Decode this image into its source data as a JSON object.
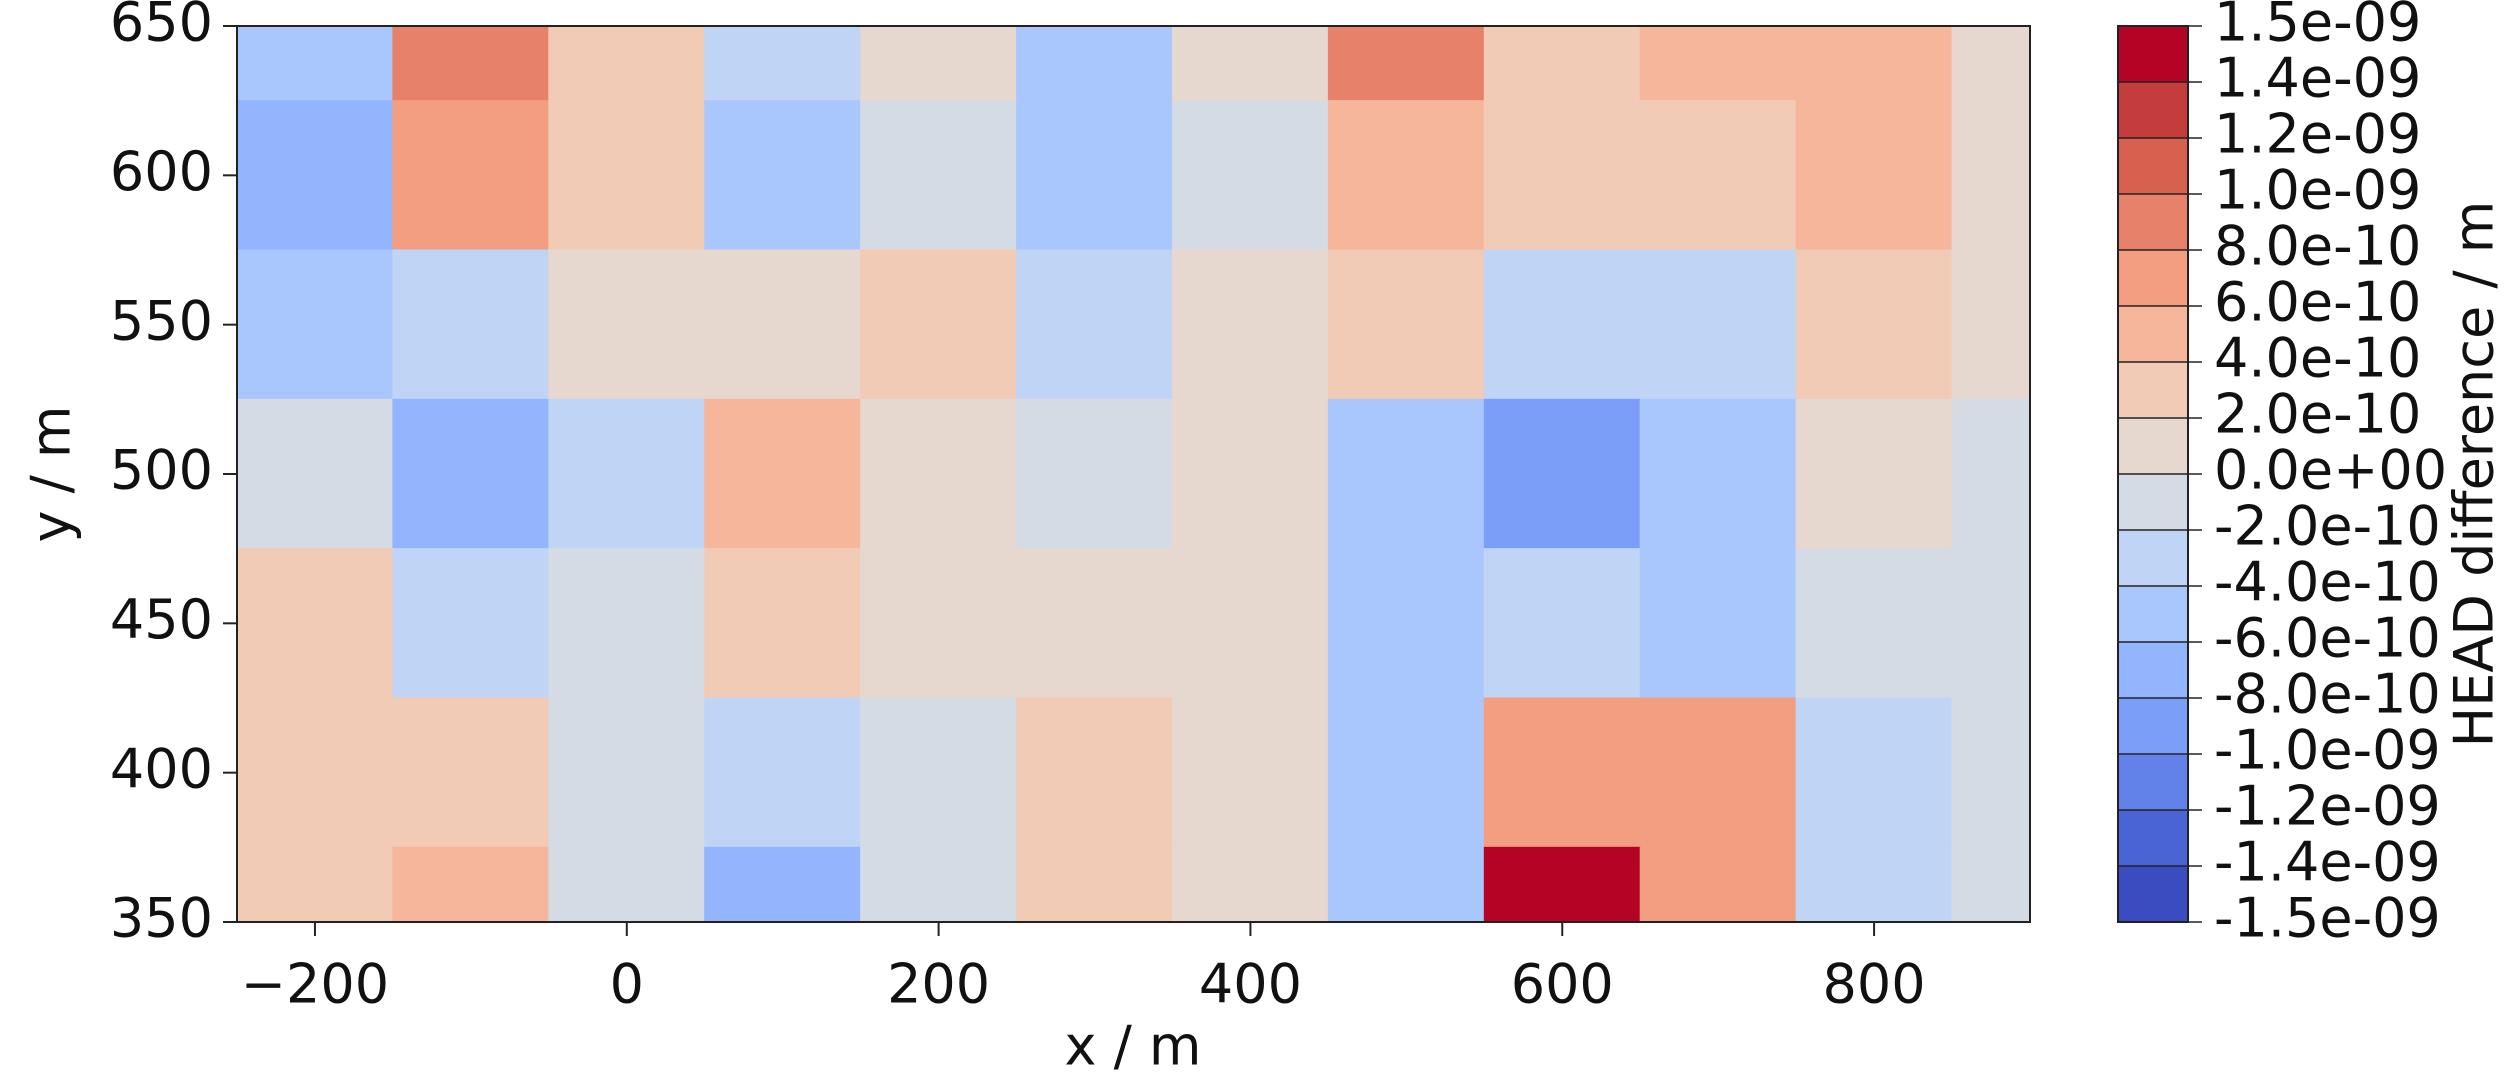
{
  "chart_data": {
    "type": "contour",
    "x_label": "x / m",
    "y_label": "y / m",
    "colorbar_label": "HEAD difference / m",
    "xlim": [
      -250,
      900
    ],
    "ylim": [
      350,
      650
    ],
    "xticks": [
      {
        "value": -200,
        "label": "−200"
      },
      0,
      200,
      400,
      600,
      800
    ],
    "yticks": [
      350,
      400,
      450,
      500,
      550,
      600,
      650
    ],
    "x": [
      -200,
      -100,
      0,
      100,
      200,
      300,
      400,
      500,
      600,
      700,
      800,
      900
    ],
    "y": [
      650,
      600,
      550,
      500,
      450,
      400,
      350
    ],
    "z": [
      [
        -5e-10,
        9e-10,
        3e-10,
        -3e-10,
        1e-10,
        -5e-10,
        1e-10,
        9e-10,
        3e-10,
        6e-10,
        5e-10,
        1e-10
      ],
      [
        -7e-10,
        7e-10,
        3e-10,
        -4e-10,
        0,
        -4e-10,
        0,
        6e-10,
        3e-10,
        4e-10,
        5e-10,
        1e-10
      ],
      [
        -4e-10,
        -2e-10,
        1e-10,
        1e-10,
        3e-10,
        -2e-10,
        1e-10,
        3e-10,
        -3e-10,
        -3e-10,
        3e-10,
        1e-10
      ],
      [
        -1e-10,
        -7e-10,
        -3e-10,
        5e-10,
        1e-10,
        -1e-10,
        1e-10,
        -5e-10,
        -9e-10,
        -4e-10,
        2e-10,
        0
      ],
      [
        3e-10,
        -3e-10,
        -1e-10,
        3e-10,
        1e-10,
        1e-10,
        1e-10,
        -4e-10,
        -2e-10,
        -4e-10,
        -1e-10,
        0
      ],
      [
        3e-10,
        4e-10,
        0,
        -3e-10,
        -1e-10,
        4e-10,
        1e-10,
        -4e-10,
        8e-10,
        7e-10,
        -3e-10,
        -1e-10
      ],
      [
        3e-10,
        5e-10,
        0,
        -7e-10,
        0,
        4e-10,
        1e-10,
        -4e-10,
        1.5e-09,
        8e-10,
        -3e-10,
        0
      ]
    ],
    "levels": [
      {
        "value": -1.5e-09,
        "label": "-1.5e-09"
      },
      {
        "value": -1.4e-09,
        "label": "-1.4e-09"
      },
      {
        "value": -1.2e-09,
        "label": "-1.2e-09"
      },
      {
        "value": -1e-09,
        "label": "-1.0e-09"
      },
      {
        "value": -8e-10,
        "label": "-8.0e-10"
      },
      {
        "value": -6e-10,
        "label": "-6.0e-10"
      },
      {
        "value": -4e-10,
        "label": "-4.0e-10"
      },
      {
        "value": -2e-10,
        "label": "-2.0e-10"
      },
      {
        "value": 0,
        "label": "0.0e+00"
      },
      {
        "value": 2e-10,
        "label": "2.0e-10"
      },
      {
        "value": 4e-10,
        "label": "4.0e-10"
      },
      {
        "value": 6e-10,
        "label": "6.0e-10"
      },
      {
        "value": 8e-10,
        "label": "8.0e-10"
      },
      {
        "value": 1e-09,
        "label": "1.0e-09"
      },
      {
        "value": 1.2e-09,
        "label": "1.2e-09"
      },
      {
        "value": 1.4e-09,
        "label": "1.4e-09"
      },
      {
        "value": 1.5e-09,
        "label": "1.5e-09"
      }
    ],
    "colors": [
      "#3b4cc0",
      "#4b64d5",
      "#6282ea",
      "#7b9ff9",
      "#93b5fe",
      "#aac7fd",
      "#c0d4f5",
      "#d5dbe5",
      "#e6d7cf",
      "#f2cbb7",
      "#f6b69b",
      "#f39e81",
      "#e8816a",
      "#d8604f",
      "#c43c3c",
      "#b40426"
    ],
    "colorbar_spacing": "uniform"
  }
}
